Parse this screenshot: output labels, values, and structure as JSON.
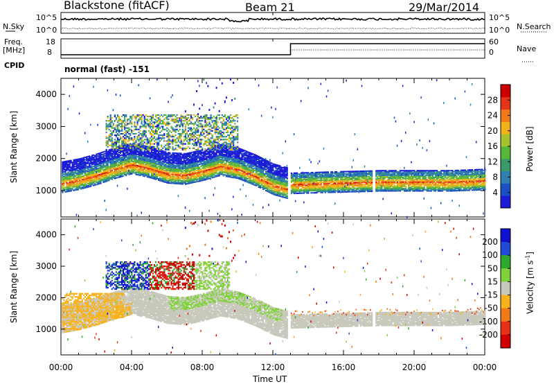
{
  "header": {
    "station": "Blackstone (fitACF)",
    "beam": "Beam 21",
    "date": "29/Mar/2014"
  },
  "top_panels": {
    "nsky_label": "N.Sky",
    "nsky_ticks": [
      "10^5",
      "10^0"
    ],
    "nsearch_label": "N.Search",
    "freq_label_line1": "Freq.",
    "freq_label_line2": "[MHz]",
    "freq_ticks": [
      "18",
      "8"
    ],
    "nave_label": "Nave",
    "nave_ticks": [
      "60",
      "0"
    ],
    "cpid_label": "CPID",
    "cpid_value": "normal (fast) -151"
  },
  "chart_data": [
    {
      "type": "heatmap",
      "panel": "power",
      "xlabel": "",
      "ylabel": "Slant Range [km]",
      "x_ticks": [
        "00:00",
        "04:00",
        "08:00",
        "12:00",
        "16:00",
        "20:00",
        "00:00"
      ],
      "y_ticks": [
        "1000",
        "2000",
        "3000",
        "4000"
      ],
      "xlim_hours": [
        0,
        24
      ],
      "ylim_km": [
        180,
        4500
      ],
      "colorbar_label": "Power [dB]",
      "colorbar_ticks": [
        "4",
        "8",
        "12",
        "16",
        "20",
        "24",
        "28"
      ],
      "colorbar_range": [
        0,
        32
      ],
      "colors": [
        "#1b1bd8",
        "#1d4fc4",
        "#2f7fb0",
        "#3c9a6a",
        "#58b63a",
        "#a6c230",
        "#f2b21a",
        "#f07a18",
        "#e53418",
        "#cc0000"
      ],
      "ridge_km_by_hour": [
        [
          0,
          1180
        ],
        [
          1,
          1280
        ],
        [
          2,
          1430
        ],
        [
          3,
          1620
        ],
        [
          4,
          1770
        ],
        [
          5,
          1650
        ],
        [
          6,
          1480
        ],
        [
          7,
          1440
        ],
        [
          8,
          1560
        ],
        [
          9,
          1720
        ],
        [
          10,
          1620
        ],
        [
          11,
          1400
        ],
        [
          12,
          1120
        ],
        [
          12.8,
          1000
        ],
        [
          13,
          1150
        ],
        [
          16,
          1200
        ],
        [
          17.6,
          1220
        ],
        [
          18,
          1230
        ],
        [
          22,
          1230
        ],
        [
          24,
          1270
        ]
      ],
      "data_gap_hours": [
        [
          12.8,
          13.0
        ],
        [
          17.6,
          17.8
        ]
      ]
    },
    {
      "type": "heatmap",
      "panel": "velocity",
      "xlabel": "Time UT",
      "ylabel": "Slant Range [km]",
      "x_ticks": [
        "00:00",
        "04:00",
        "08:00",
        "12:00",
        "16:00",
        "20:00",
        "00:00"
      ],
      "y_ticks": [
        "1000",
        "2000",
        "3000",
        "4000"
      ],
      "xlim_hours": [
        0,
        24
      ],
      "ylim_km": [
        180,
        4500
      ],
      "colorbar_label": "Velocity [m s",
      "colorbar_label_superscript": "-1",
      "colorbar_label_close": "]",
      "colorbar_ticks": [
        "200",
        "100",
        "50",
        "15",
        "-15",
        "-50",
        "-100",
        "-200"
      ],
      "colors": [
        "#1010d0",
        "#1f4bd8",
        "#2fa82f",
        "#7fd23a",
        "#c8c8bc",
        "#f7b21c",
        "#f07a18",
        "#e83018",
        "#d00000"
      ],
      "ground_scatter_color": "#c8c8bc"
    }
  ]
}
